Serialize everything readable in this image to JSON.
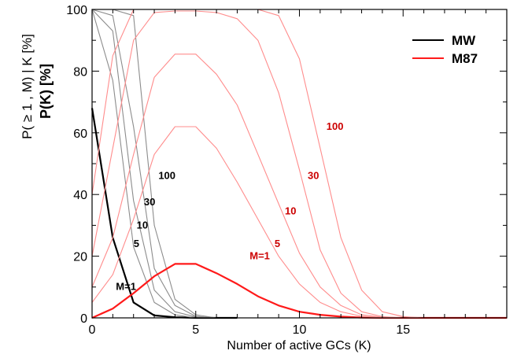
{
  "chart_data": {
    "type": "line",
    "title": "",
    "xlabel": "Number of active GCs (K)",
    "ylabel_primary": "P(K) [%]",
    "ylabel_secondary": "P( ≥ 1 , M) | K  [%]",
    "xlim": [
      0,
      20
    ],
    "ylim": [
      0,
      100
    ],
    "xticks": [
      "0",
      "5",
      "10",
      "15"
    ],
    "yticks": [
      "0",
      "20",
      "40",
      "60",
      "80",
      "100"
    ],
    "grid": false,
    "legend_position": "top-right",
    "legend": [
      {
        "label": "MW",
        "color": "#000000"
      },
      {
        "label": "M87",
        "color": "#ff0000"
      }
    ],
    "colors": {
      "mw_main": "#000000",
      "mw_other": "#8c8c8c",
      "m87_main": "#ff1a1a",
      "m87_other": "#ff8c8c",
      "m87_label": "#cc0000"
    },
    "series": [
      {
        "group": "MW",
        "label": "M=1",
        "emphasis": true,
        "x": [
          0,
          1,
          2,
          3,
          4,
          5,
          6,
          7
        ],
        "y": [
          68,
          26,
          5,
          0.8,
          0.2,
          0,
          0,
          0
        ]
      },
      {
        "group": "MW",
        "label": "5",
        "emphasis": false,
        "x": [
          0,
          1,
          2,
          3,
          4,
          5,
          6,
          7
        ],
        "y": [
          100,
          77,
          23,
          5,
          1,
          0,
          0,
          0
        ]
      },
      {
        "group": "MW",
        "label": "10",
        "emphasis": false,
        "x": [
          0,
          1,
          2,
          3,
          4,
          5,
          6,
          7
        ],
        "y": [
          100,
          93,
          38,
          9,
          2,
          0.3,
          0,
          0
        ]
      },
      {
        "group": "MW",
        "label": "30",
        "emphasis": false,
        "x": [
          0,
          1,
          2,
          3,
          4,
          5,
          6,
          7
        ],
        "y": [
          100,
          98,
          62,
          16,
          4,
          0.5,
          0,
          0
        ]
      },
      {
        "group": "MW",
        "label": "100",
        "emphasis": false,
        "x": [
          0,
          1,
          2,
          3,
          4,
          5,
          6,
          7
        ],
        "y": [
          100,
          100,
          98,
          30,
          6,
          1,
          0,
          0
        ]
      },
      {
        "group": "M87",
        "label": "M=1",
        "emphasis": true,
        "x": [
          0,
          1,
          2,
          3,
          4,
          5,
          6,
          7,
          8,
          9,
          10,
          11,
          12,
          13,
          14,
          15,
          16,
          17,
          18,
          19,
          20
        ],
        "y": [
          0,
          3,
          8,
          13.5,
          17.5,
          17.5,
          14.5,
          11,
          7,
          4,
          2,
          1,
          0.4,
          0.1,
          0,
          0,
          0,
          0,
          0,
          0,
          0
        ]
      },
      {
        "group": "M87",
        "label": "5",
        "emphasis": false,
        "x": [
          0,
          1,
          2,
          3,
          4,
          5,
          6,
          7,
          8,
          9,
          10,
          11,
          12,
          13,
          14,
          15,
          16,
          17,
          18,
          19,
          20
        ],
        "y": [
          5,
          14,
          32,
          53,
          62,
          62,
          55,
          44,
          32,
          20,
          11,
          5,
          2,
          0.5,
          0.1,
          0,
          0,
          0,
          0,
          0,
          0
        ]
      },
      {
        "group": "M87",
        "label": "10",
        "emphasis": false,
        "x": [
          0,
          1,
          2,
          3,
          4,
          5,
          6,
          7,
          8,
          9,
          10,
          11,
          12,
          13,
          14,
          15,
          16,
          17,
          18,
          19,
          20
        ],
        "y": [
          10,
          26,
          53,
          78,
          85.5,
          85.5,
          79,
          69,
          53,
          37,
          21,
          10,
          4,
          1,
          0.2,
          0,
          0,
          0,
          0,
          0,
          0
        ]
      },
      {
        "group": "M87",
        "label": "30",
        "emphasis": false,
        "x": [
          0,
          1,
          2,
          3,
          4,
          5,
          6,
          7,
          8,
          9,
          10,
          11,
          12,
          13,
          14,
          15,
          16,
          17,
          18,
          19,
          20
        ],
        "y": [
          20,
          55,
          90,
          99,
          99.5,
          99.5,
          99,
          97,
          90,
          73,
          48,
          22,
          8,
          2,
          0.4,
          0,
          0,
          0,
          0,
          0,
          0
        ]
      },
      {
        "group": "M87",
        "label": "100",
        "emphasis": false,
        "x": [
          0,
          1,
          2,
          3,
          4,
          5,
          6,
          7,
          8,
          9,
          10,
          11,
          12,
          13,
          14,
          15,
          16,
          17,
          18,
          19,
          20
        ],
        "y": [
          40,
          85,
          100,
          100,
          100,
          100,
          100,
          100,
          100,
          98,
          84,
          55,
          26,
          9,
          2,
          0.4,
          0,
          0,
          0,
          0,
          0
        ]
      }
    ]
  }
}
